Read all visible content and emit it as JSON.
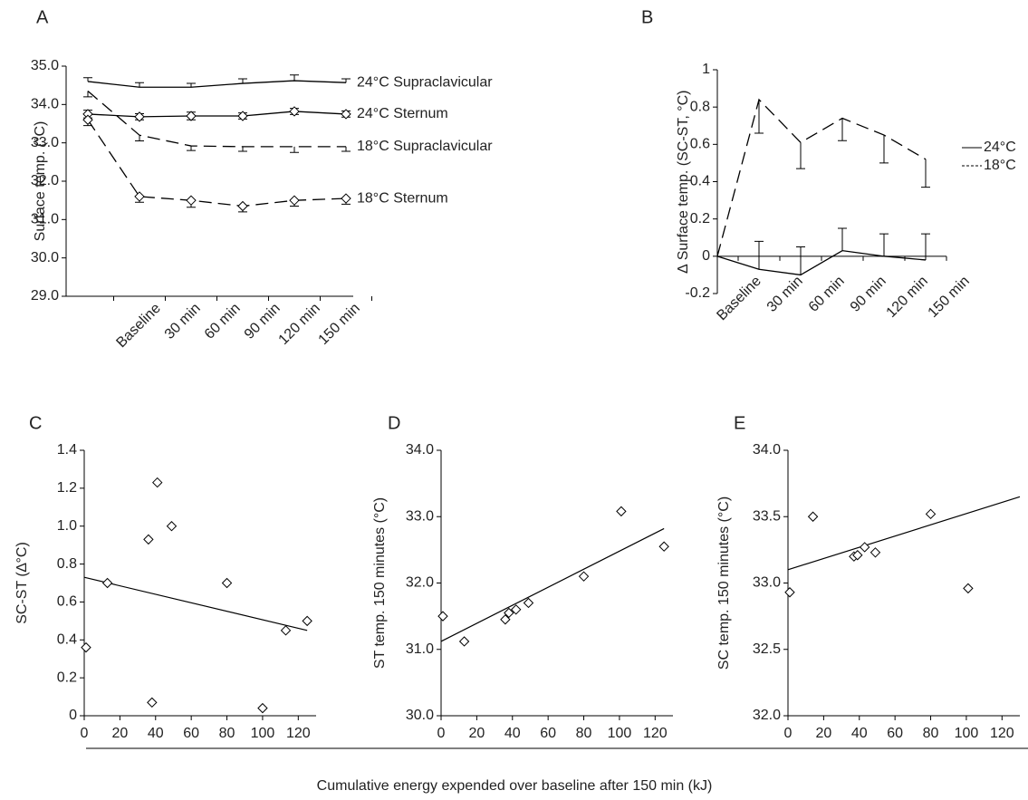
{
  "chart_data": [
    {
      "type": "line",
      "label": "A",
      "ylabel": "Surface temp. (°C)",
      "categories": [
        "Baseline",
        "30 min",
        "60 min",
        "90 min",
        "120 min",
        "150 min"
      ],
      "ylim": [
        29,
        35
      ],
      "yticks": [
        {
          "value": 29,
          "label": "29.0"
        },
        {
          "value": 30,
          "label": "30.0"
        },
        {
          "value": 31,
          "label": "31.0"
        },
        {
          "value": 32,
          "label": "32.0"
        },
        {
          "value": 33,
          "label": "33.0"
        },
        {
          "value": 34,
          "label": "34.0"
        },
        {
          "value": 35,
          "label": "35.0"
        }
      ],
      "legend": "end-labels",
      "series": [
        {
          "name": "24°C Supraclavicular",
          "color": "#000000",
          "dash": "solid",
          "marker": "none",
          "error_side": "up",
          "values": [
            34.6,
            34.45,
            34.45,
            34.55,
            34.62,
            34.57
          ],
          "errors": [
            0.1,
            0.12,
            0.1,
            0.12,
            0.15,
            0.1
          ]
        },
        {
          "name": "24°C Sternum",
          "color": "#000000",
          "dash": "solid",
          "marker": "diamond",
          "error_side": "both",
          "values": [
            33.75,
            33.68,
            33.7,
            33.7,
            33.82,
            33.75
          ],
          "errors": [
            0.1,
            0.08,
            0.1,
            0.08,
            0.08,
            0.08
          ]
        },
        {
          "name": "18°C Supraclavicular",
          "color": "#000000",
          "dash": "dash",
          "marker": "none",
          "error_side": "down",
          "values": [
            34.35,
            33.2,
            32.92,
            32.9,
            32.9,
            32.9
          ],
          "errors": [
            0.15,
            0.15,
            0.12,
            0.12,
            0.15,
            0.12
          ]
        },
        {
          "name": "18°C Sternum",
          "color": "#000000",
          "dash": "dash",
          "marker": "diamond",
          "error_side": "down",
          "values": [
            33.6,
            31.6,
            31.5,
            31.35,
            31.5,
            31.55
          ],
          "errors": [
            0.15,
            0.15,
            0.18,
            0.15,
            0.15,
            0.15
          ]
        }
      ]
    },
    {
      "type": "line",
      "label": "B",
      "ylabel": "∆ Surface temp. (SC-ST, °C)",
      "categories": [
        "Baseline",
        "30 min",
        "60 min",
        "90 min",
        "120 min",
        "150 min"
      ],
      "ylim": [
        -0.2,
        1
      ],
      "yticks": [
        -0.2,
        0,
        0.2,
        0.4,
        0.6,
        0.8,
        1
      ],
      "legend": "right",
      "series": [
        {
          "name": "24°C",
          "color": "#000000",
          "dash": "solid",
          "marker": "none",
          "error_side": "up",
          "values": [
            0,
            -0.07,
            -0.1,
            0.03,
            0,
            -0.02
          ],
          "errors": [
            null,
            0.15,
            0.15,
            0.12,
            0.12,
            0.14
          ]
        },
        {
          "name": "18°C",
          "color": "#000000",
          "dash": "dash",
          "marker": "none",
          "error_side": "down",
          "values": [
            0,
            0.84,
            0.61,
            0.74,
            0.65,
            0.52
          ],
          "errors": [
            null,
            0.18,
            0.14,
            0.12,
            0.15,
            0.15
          ]
        }
      ]
    },
    {
      "type": "scatter",
      "label": "C",
      "ylabel": "SC-ST (∆°C)",
      "color": "#000000",
      "x": [
        1,
        13,
        36,
        38,
        41,
        49,
        80,
        100,
        113,
        125
      ],
      "values": [
        0.36,
        0.7,
        0.93,
        0.07,
        1.23,
        1.0,
        0.7,
        0.04,
        0.45,
        0.5
      ],
      "xlim": [
        0,
        130
      ],
      "xticks": [
        0,
        20,
        40,
        60,
        80,
        100,
        120
      ],
      "ylim": [
        0,
        1.4
      ],
      "yticks": [
        0,
        0.2,
        0.4,
        0.6,
        0.8,
        {
          "value": 1,
          "label": "1.0"
        },
        1.2,
        1.4
      ],
      "trendline": {
        "x": [
          0,
          125
        ],
        "values": [
          0.73,
          0.45
        ]
      }
    },
    {
      "type": "scatter",
      "label": "D",
      "ylabel": "ST temp. 150 minutes (°C)",
      "color": "#000000",
      "x": [
        1,
        13,
        36,
        38,
        42,
        49,
        80,
        101,
        125
      ],
      "values": [
        31.5,
        31.12,
        31.45,
        31.55,
        31.6,
        31.7,
        32.1,
        33.08,
        32.55
      ],
      "xlim": [
        0,
        130
      ],
      "xticks": [
        0,
        20,
        40,
        60,
        80,
        100,
        120
      ],
      "ylim": [
        30,
        34
      ],
      "yticks": [
        {
          "value": 30,
          "label": "30.0"
        },
        {
          "value": 31,
          "label": "31.0"
        },
        {
          "value": 32,
          "label": "32.0"
        },
        {
          "value": 33,
          "label": "33.0"
        },
        {
          "value": 34,
          "label": "34.0"
        }
      ],
      "trendline": {
        "x": [
          0,
          125
        ],
        "values": [
          31.12,
          32.82
        ]
      }
    },
    {
      "type": "scatter",
      "label": "E",
      "ylabel": "SC temp. 150 minutes (°C)",
      "color": "#000000",
      "x": [
        1,
        14,
        37,
        39,
        43,
        49,
        80,
        101
      ],
      "values": [
        32.93,
        33.5,
        33.2,
        33.21,
        33.27,
        33.23,
        33.52,
        32.96
      ],
      "xlim": [
        0,
        130
      ],
      "xticks": [
        0,
        20,
        40,
        60,
        80,
        100,
        120
      ],
      "ylim": [
        32,
        34
      ],
      "yticks": [
        {
          "value": 32,
          "label": "32.0"
        },
        32.5,
        {
          "value": 33,
          "label": "33.0"
        },
        33.5,
        {
          "value": 34,
          "label": "34.0"
        }
      ],
      "trendline": {
        "x": [
          0,
          130
        ],
        "values": [
          33.1,
          33.65
        ]
      }
    }
  ],
  "shared_xlabel": "Cumulative energy expended over baseline after 150 min (kJ)"
}
